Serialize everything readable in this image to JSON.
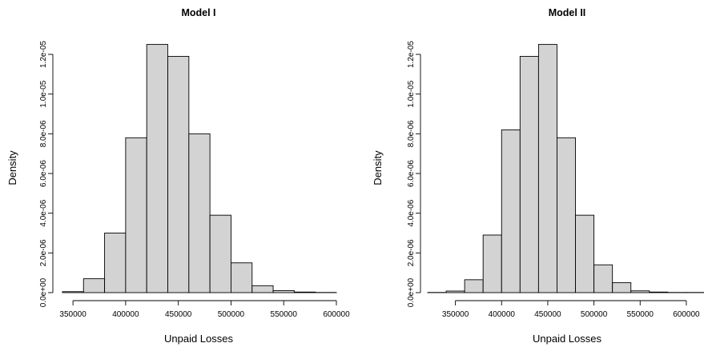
{
  "chart_data": [
    {
      "type": "bar",
      "title": "Model I",
      "xlabel": "Unpaid Losses",
      "ylabel": "Density",
      "x_ticks": [
        "350000",
        "400000",
        "450000",
        "500000",
        "550000",
        "600000"
      ],
      "y_ticks": [
        "0.0e+00",
        "2.0e-06",
        "4.0e-06",
        "6.0e-06",
        "8.0e-06",
        "1.0e-05",
        "1.2e-05"
      ],
      "bins": [
        {
          "x0": 340000,
          "x1": 360000,
          "y": 5e-08
        },
        {
          "x0": 360000,
          "x1": 380000,
          "y": 7e-07
        },
        {
          "x0": 380000,
          "x1": 400000,
          "y": 3e-06
        },
        {
          "x0": 400000,
          "x1": 420000,
          "y": 7.8e-06
        },
        {
          "x0": 420000,
          "x1": 440000,
          "y": 1.25e-05
        },
        {
          "x0": 440000,
          "x1": 460000,
          "y": 1.19e-05
        },
        {
          "x0": 460000,
          "x1": 480000,
          "y": 8e-06
        },
        {
          "x0": 480000,
          "x1": 500000,
          "y": 3.9e-06
        },
        {
          "x0": 500000,
          "x1": 520000,
          "y": 1.5e-06
        },
        {
          "x0": 520000,
          "x1": 540000,
          "y": 3.5e-07
        },
        {
          "x0": 540000,
          "x1": 560000,
          "y": 1e-07
        },
        {
          "x0": 560000,
          "x1": 580000,
          "y": 3e-08
        },
        {
          "x0": 580000,
          "x1": 600000,
          "y": 1e-08
        }
      ]
    },
    {
      "type": "bar",
      "title": "Model II",
      "xlabel": "Unpaid Losses",
      "ylabel": "Density",
      "x_ticks": [
        "350000",
        "400000",
        "450000",
        "500000",
        "550000",
        "600000"
      ],
      "y_ticks": [
        "0.0e+00",
        "2.0e-06",
        "4.0e-06",
        "6.0e-06",
        "8.0e-06",
        "1.0e-05",
        "1.2e-05"
      ],
      "bins": [
        {
          "x0": 320000,
          "x1": 340000,
          "y": 1e-08
        },
        {
          "x0": 340000,
          "x1": 360000,
          "y": 8e-08
        },
        {
          "x0": 360000,
          "x1": 380000,
          "y": 6.5e-07
        },
        {
          "x0": 380000,
          "x1": 400000,
          "y": 2.9e-06
        },
        {
          "x0": 400000,
          "x1": 420000,
          "y": 8.2e-06
        },
        {
          "x0": 420000,
          "x1": 440000,
          "y": 1.19e-05
        },
        {
          "x0": 440000,
          "x1": 460000,
          "y": 1.25e-05
        },
        {
          "x0": 460000,
          "x1": 480000,
          "y": 7.8e-06
        },
        {
          "x0": 480000,
          "x1": 500000,
          "y": 3.9e-06
        },
        {
          "x0": 500000,
          "x1": 520000,
          "y": 1.4e-06
        },
        {
          "x0": 520000,
          "x1": 540000,
          "y": 5e-07
        },
        {
          "x0": 540000,
          "x1": 560000,
          "y": 9e-08
        },
        {
          "x0": 560000,
          "x1": 580000,
          "y": 3e-08
        },
        {
          "x0": 580000,
          "x1": 600000,
          "y": 1e-08
        },
        {
          "x0": 600000,
          "x1": 620000,
          "y": 1e-08
        }
      ]
    }
  ]
}
